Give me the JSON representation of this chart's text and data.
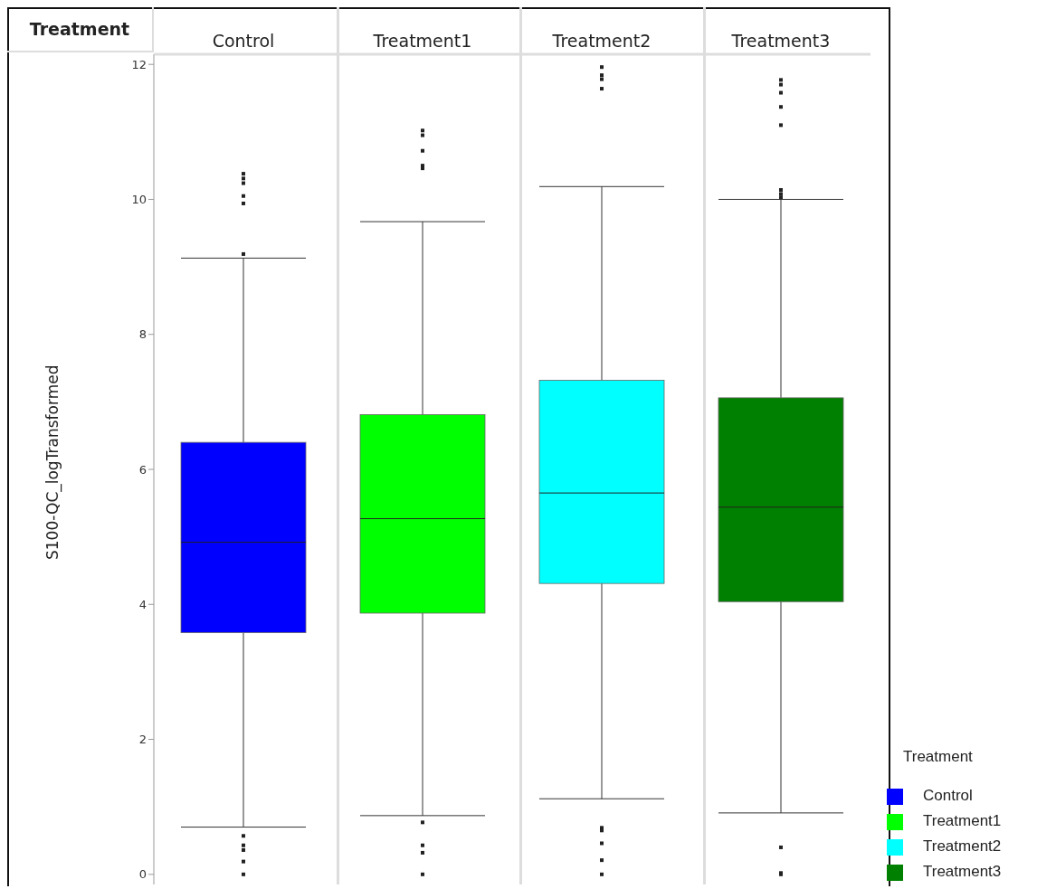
{
  "chart_data": {
    "type": "box",
    "xlabel": "Treatment",
    "ylabel": "S100-QC_logTransformed",
    "legend_title": "Treatment",
    "categories": [
      "Control",
      "Treatment1",
      "Treatment2",
      "Treatment3"
    ],
    "series": [
      {
        "name": "Control",
        "color": "#0000ff",
        "boxes": [
          {
            "low": 0.7,
            "q1": 3.58,
            "median": 4.92,
            "q3": 6.4,
            "high": 9.13,
            "outliers": [
              10.38,
              10.31,
              10.24,
              10.05,
              9.94,
              9.19,
              0.57,
              0.43,
              0.36,
              0.19,
              0
            ]
          },
          null,
          null,
          null
        ]
      },
      {
        "name": "Treatment1",
        "color": "#00ff00",
        "boxes": [
          null,
          {
            "low": 0.87,
            "q1": 3.87,
            "median": 5.27,
            "q3": 6.81,
            "high": 9.67,
            "outliers": [
              11.02,
              10.95,
              10.72,
              10.5,
              10.46,
              0.77,
              0.43,
              0.32,
              0
            ]
          },
          null,
          null
        ]
      },
      {
        "name": "Treatment2",
        "color": "#00ffff",
        "boxes": [
          null,
          null,
          {
            "low": 1.12,
            "q1": 4.31,
            "median": 5.65,
            "q3": 7.32,
            "high": 10.19,
            "outliers": [
              11.96,
              11.84,
              11.78,
              11.64,
              0.69,
              0.65,
              0.46,
              0.21,
              0
            ]
          },
          null
        ]
      },
      {
        "name": "Treatment3",
        "color": "#008000",
        "boxes": [
          null,
          null,
          null,
          {
            "low": 0.91,
            "q1": 4.04,
            "median": 5.44,
            "q3": 7.06,
            "high": 10.0,
            "outliers": [
              11.77,
              11.7,
              11.58,
              11.37,
              11.1,
              10.14,
              10.08,
              10.03,
              0.4,
              0.02,
              0
            ]
          }
        ]
      }
    ],
    "ylim": [
      -0.15,
      12.15
    ],
    "yticks": [
      0,
      2,
      4,
      6,
      8,
      10,
      12
    ],
    "legend": "bottom right"
  }
}
